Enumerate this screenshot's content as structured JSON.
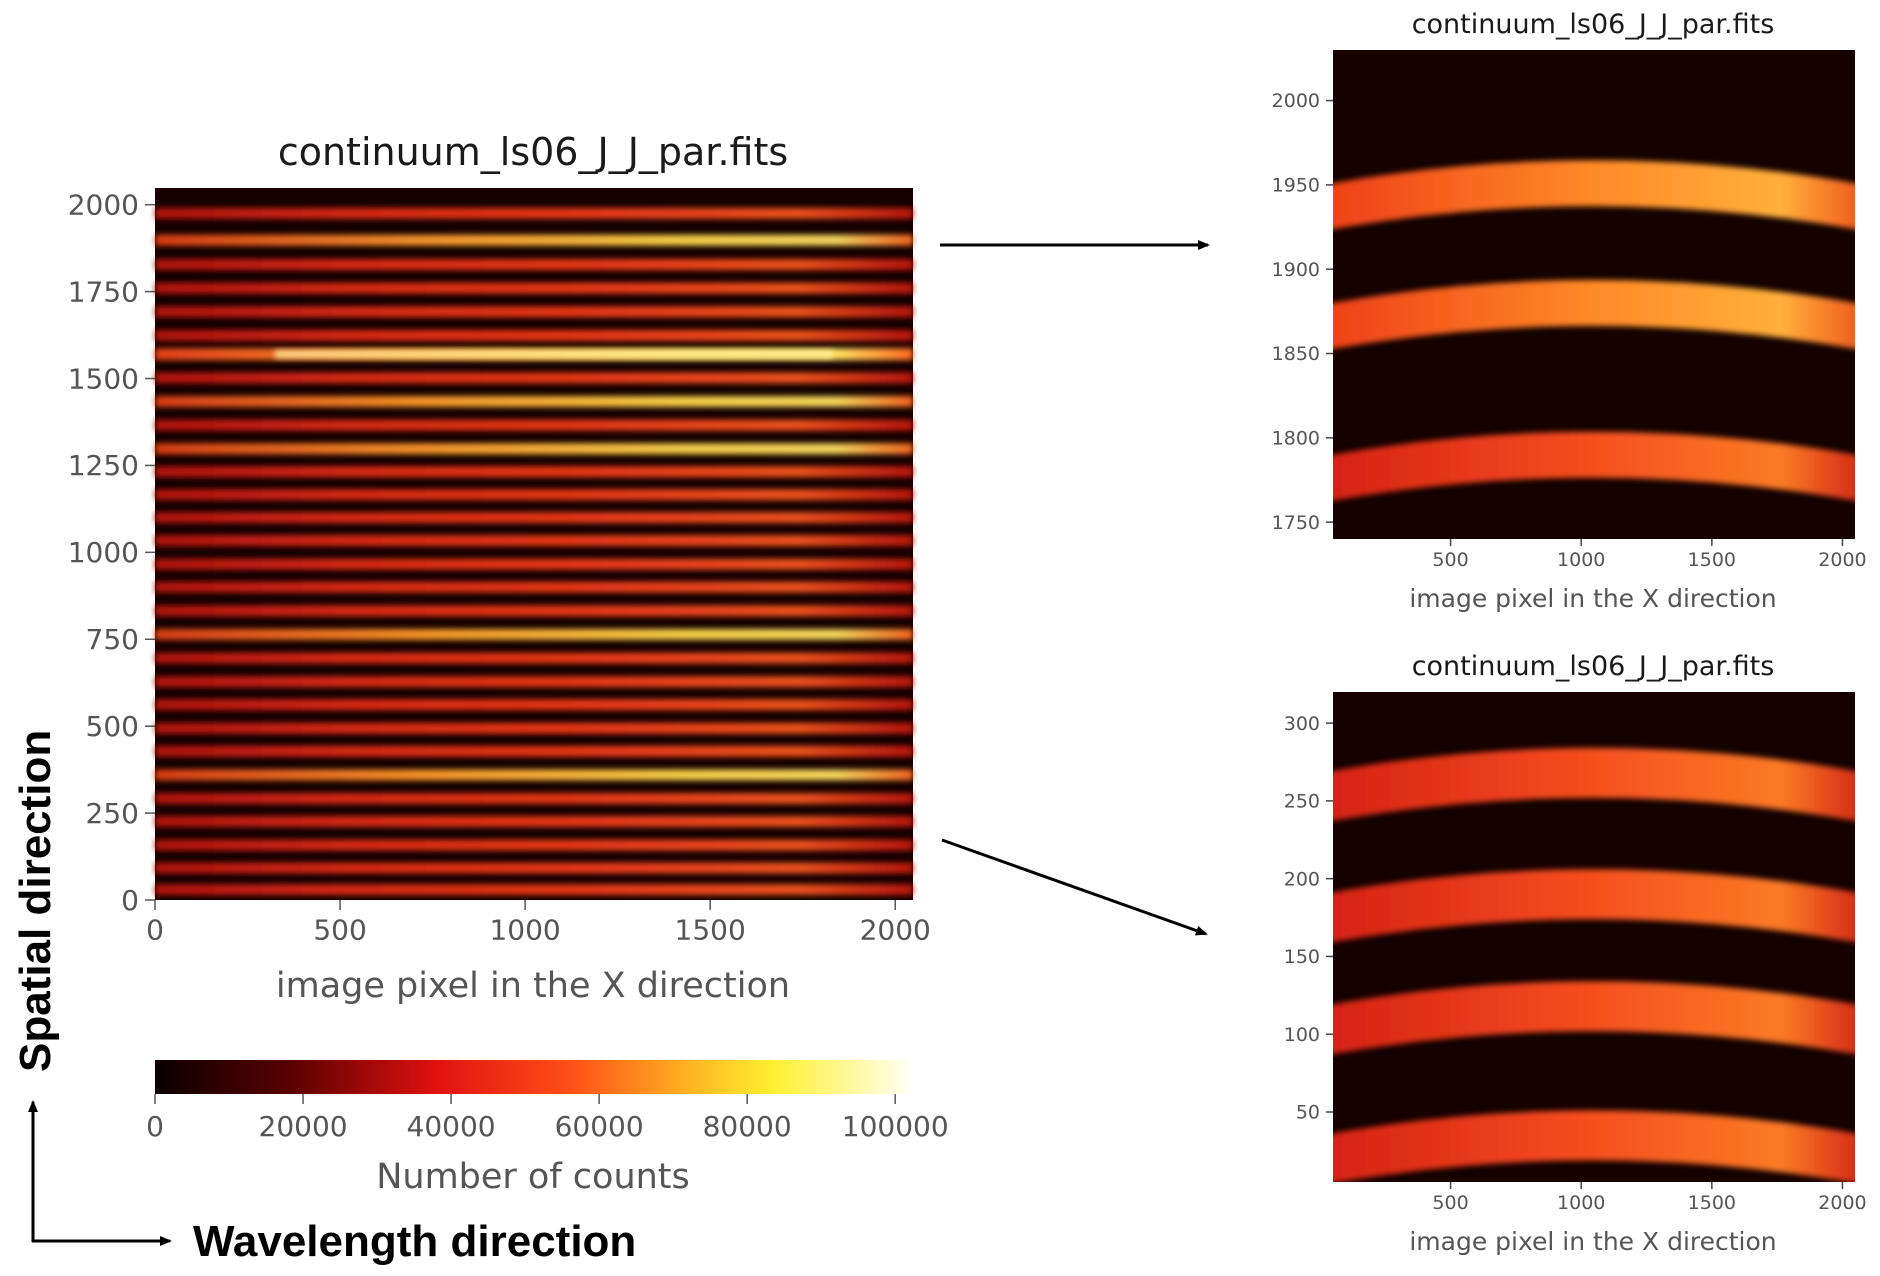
{
  "chart_data": [
    {
      "type": "heatmap",
      "title": "continuum_ls06_J_J_par.fits",
      "xlabel": "image pixel in the X direction",
      "ylabel": "",
      "xlim": [
        0,
        2048
      ],
      "ylim": [
        0,
        2048
      ],
      "xticks": [
        0,
        500,
        1000,
        1500,
        2000
      ],
      "yticks": [
        0,
        250,
        500,
        750,
        1000,
        1250,
        1500,
        1750,
        2000
      ],
      "colormap": "hot",
      "colorbar": {
        "label": "Number of counts",
        "range": [
          0,
          102000
        ],
        "ticks": [
          0,
          20000,
          40000,
          60000,
          80000,
          100000
        ],
        "orientation": "horizontal"
      },
      "bright_stripes_y": [
        1975,
        1898,
        1828,
        1760,
        1692,
        1624,
        1570,
        1502,
        1434,
        1366,
        1298,
        1232,
        1166,
        1100,
        1034,
        966,
        900,
        832,
        764,
        696,
        628,
        562,
        494,
        428,
        360,
        292,
        226,
        158,
        92,
        30
      ],
      "peak_stripe_y": 1570
    },
    {
      "type": "heatmap",
      "title": "continuum_ls06_J_J_par.fits",
      "xlabel": "image pixel in the X direction",
      "ylabel": "",
      "xlim": [
        50,
        2048
      ],
      "ylim": [
        1740,
        2030
      ],
      "xticks": [
        500,
        1000,
        1500,
        2000
      ],
      "yticks": [
        1750,
        1800,
        1850,
        1900,
        1950,
        2000
      ],
      "colormap": "hot",
      "bright_stripes_y": [
        1951,
        1880,
        1790
      ]
    },
    {
      "type": "heatmap",
      "title": "continuum_ls06_J_J_par.fits",
      "xlabel": "image pixel in the X direction",
      "ylabel": "",
      "xlim": [
        50,
        2048
      ],
      "ylim": [
        5,
        320
      ],
      "xticks": [
        500,
        1000,
        1500,
        2000
      ],
      "yticks": [
        50,
        100,
        150,
        200,
        250,
        300
      ],
      "colormap": "hot",
      "bright_stripes_y": [
        268,
        190,
        118,
        35
      ]
    }
  ],
  "annotations": {
    "spatial_label": "Spatial direction",
    "wavelength_label": "Wavelength direction"
  }
}
